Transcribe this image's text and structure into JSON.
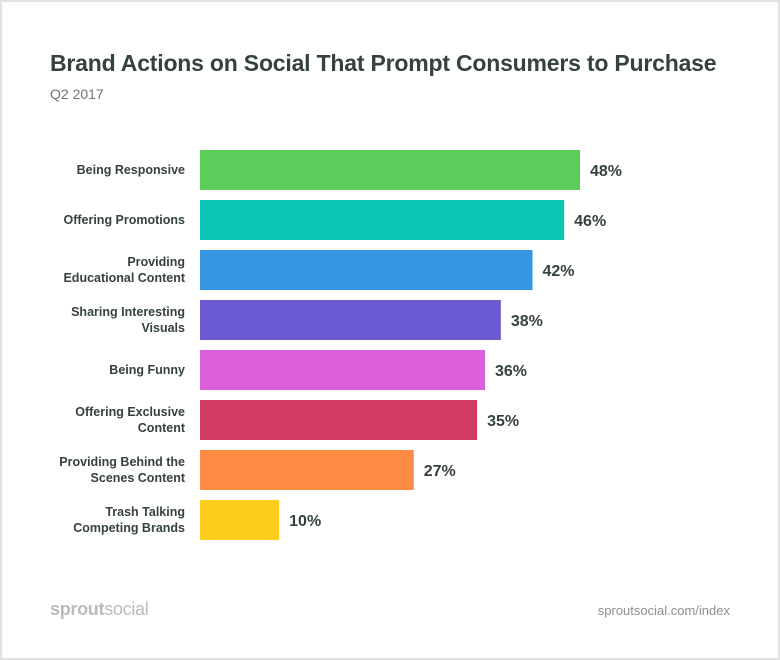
{
  "chart_data": {
    "type": "bar",
    "orientation": "horizontal",
    "title": "Brand Actions on Social That Prompt Consumers to Purchase",
    "subtitle": "Q2 2017",
    "categories": [
      [
        "Being Responsive"
      ],
      [
        "Offering Promotions"
      ],
      [
        "Providing",
        "Educational Content"
      ],
      [
        "Sharing Interesting",
        "Visuals"
      ],
      [
        "Being Funny"
      ],
      [
        "Offering Exclusive",
        "Content"
      ],
      [
        "Providing Behind the",
        "Scenes Content"
      ],
      [
        "Trash Talking",
        "Competing Brands"
      ]
    ],
    "values": [
      48,
      46,
      42,
      38,
      36,
      35,
      27,
      10
    ],
    "value_labels": [
      "48%",
      "46%",
      "42%",
      "38%",
      "36%",
      "35%",
      "27%",
      "10%"
    ],
    "colors": [
      "#5bcd5b",
      "#0ac5b4",
      "#3696e1",
      "#6b5bd2",
      "#db5edb",
      "#d03a63",
      "#ff8b45",
      "#fdce1b"
    ],
    "xlabel": "",
    "ylabel": "",
    "xlim": [
      0,
      48
    ],
    "grid": false,
    "unit": "%"
  },
  "footer": {
    "logo_bold": "sprout",
    "logo_light": "social",
    "url": "sproutsocial.com/index"
  }
}
